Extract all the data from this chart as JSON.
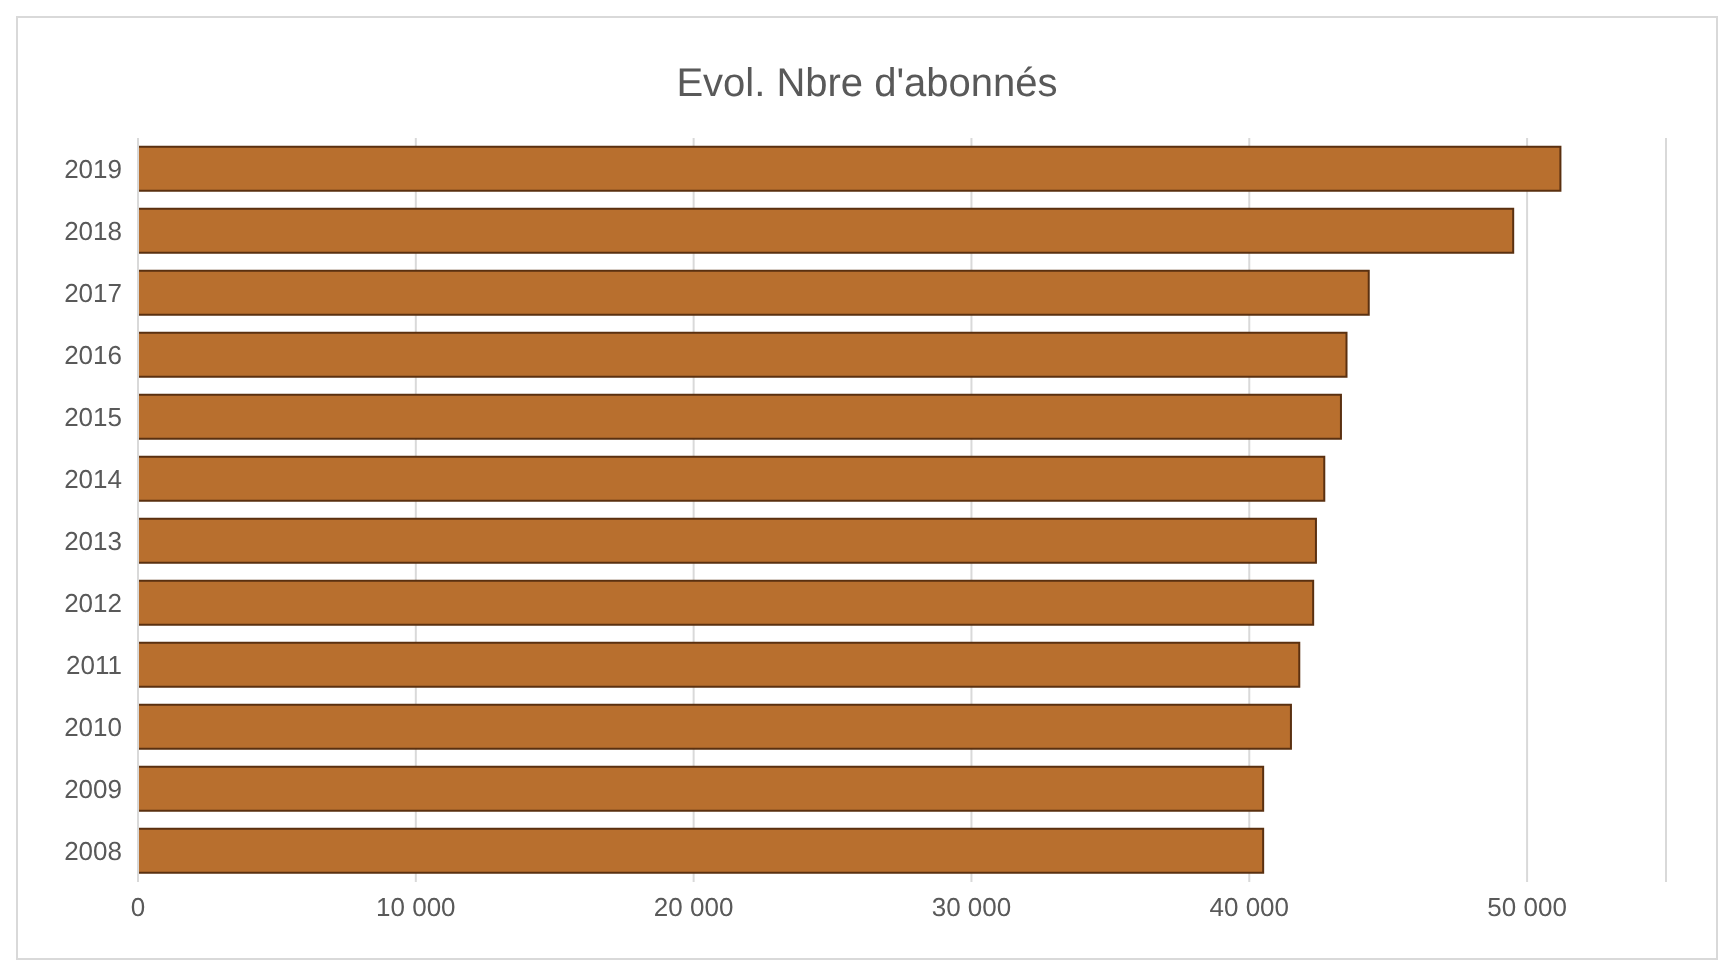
{
  "chart_data": {
    "type": "bar",
    "orientation": "horizontal",
    "title": "Evol. Nbre d'abonnés",
    "categories": [
      "2019",
      "2018",
      "2017",
      "2016",
      "2015",
      "2014",
      "2013",
      "2012",
      "2011",
      "2010",
      "2009",
      "2008"
    ],
    "values": [
      51200,
      49500,
      44300,
      43500,
      43300,
      42700,
      42400,
      42300,
      41800,
      41500,
      40500,
      40500
    ],
    "color": "#b86f2e",
    "xlim": [
      0,
      55000
    ],
    "xticks": [
      0,
      {
        "value": 10000,
        "label": "10 000"
      },
      {
        "value": 20000,
        "label": "20 000"
      },
      {
        "value": 30000,
        "label": "30 000"
      },
      {
        "value": 40000,
        "label": "40 000"
      },
      {
        "value": 50000,
        "label": "50 000"
      }
    ],
    "grid": "x",
    "legend": false
  }
}
